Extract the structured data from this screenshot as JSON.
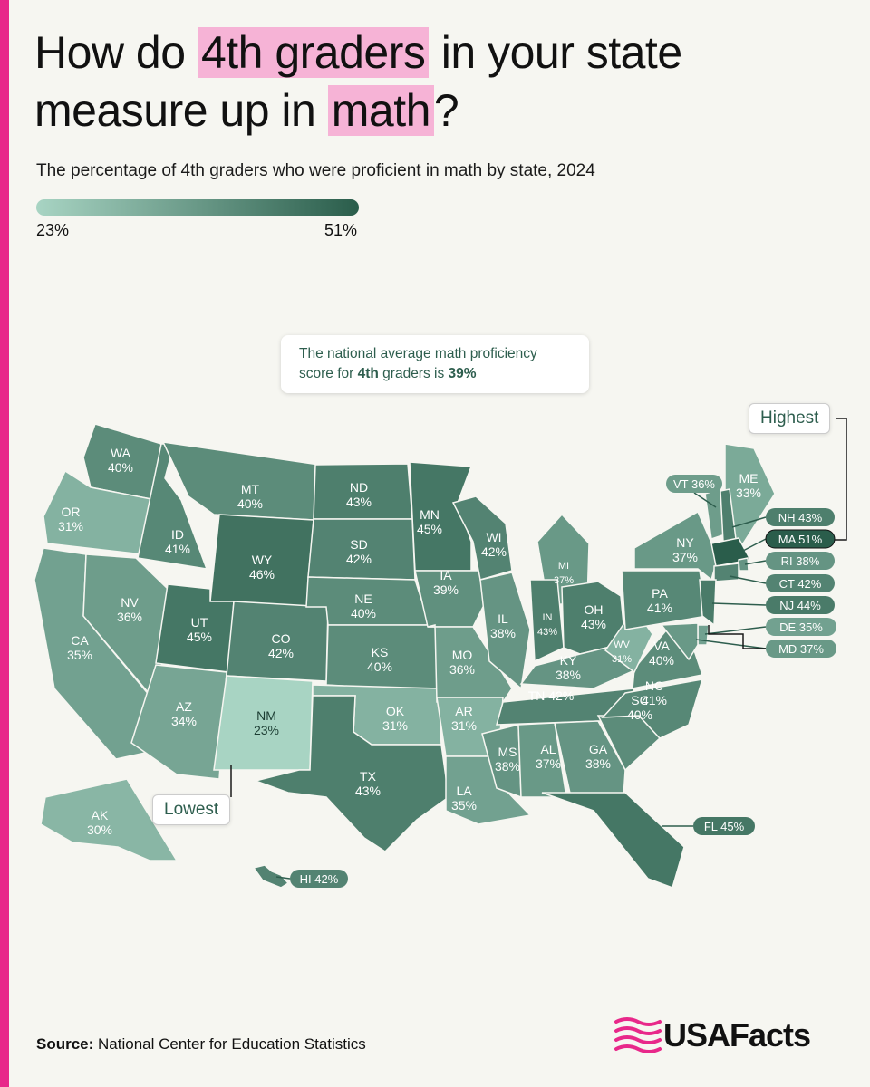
{
  "title": {
    "part1": "How do ",
    "highlight1": "4th graders",
    "part2": " in your state measure up in ",
    "highlight2": "math",
    "part3": "?"
  },
  "subtitle": "The percentage of 4th graders who were proficient in math by state, 2024",
  "legend": {
    "min": "23%",
    "max": "51%",
    "min_color": "#a8d4c3",
    "max_color": "#2a5d4b"
  },
  "note": {
    "text1": "The national average math proficiency score for ",
    "bold1": "4th",
    "text2": " graders is ",
    "bold2": "39%"
  },
  "callouts": {
    "highest": "Highest",
    "lowest": "Lowest"
  },
  "source": {
    "label": "Source:",
    "text": " National Center for Education Statistics"
  },
  "logo": {
    "text": "USAFacts",
    "color": "#e8288a"
  },
  "map_data": [
    {
      "abbr": "WA",
      "value": 40
    },
    {
      "abbr": "OR",
      "value": 31
    },
    {
      "abbr": "CA",
      "value": 35
    },
    {
      "abbr": "ID",
      "value": 41
    },
    {
      "abbr": "NV",
      "value": 36
    },
    {
      "abbr": "MT",
      "value": 40
    },
    {
      "abbr": "WY",
      "value": 46
    },
    {
      "abbr": "UT",
      "value": 45
    },
    {
      "abbr": "AZ",
      "value": 34
    },
    {
      "abbr": "CO",
      "value": 42
    },
    {
      "abbr": "NM",
      "value": 23
    },
    {
      "abbr": "ND",
      "value": 43
    },
    {
      "abbr": "SD",
      "value": 42
    },
    {
      "abbr": "NE",
      "value": 40
    },
    {
      "abbr": "KS",
      "value": 40
    },
    {
      "abbr": "OK",
      "value": 31
    },
    {
      "abbr": "TX",
      "value": 43
    },
    {
      "abbr": "MN",
      "value": 45
    },
    {
      "abbr": "IA",
      "value": 39
    },
    {
      "abbr": "MO",
      "value": 36
    },
    {
      "abbr": "AR",
      "value": 31
    },
    {
      "abbr": "LA",
      "value": 35
    },
    {
      "abbr": "WI",
      "value": 42
    },
    {
      "abbr": "IL",
      "value": 38
    },
    {
      "abbr": "MI",
      "value": 37
    },
    {
      "abbr": "IN",
      "value": 43
    },
    {
      "abbr": "OH",
      "value": 43
    },
    {
      "abbr": "KY",
      "value": 38
    },
    {
      "abbr": "TN",
      "value": 42
    },
    {
      "abbr": "MS",
      "value": 38
    },
    {
      "abbr": "AL",
      "value": 37
    },
    {
      "abbr": "GA",
      "value": 38
    },
    {
      "abbr": "FL",
      "value": 45
    },
    {
      "abbr": "SC",
      "value": 40
    },
    {
      "abbr": "NC",
      "value": 41
    },
    {
      "abbr": "VA",
      "value": 40
    },
    {
      "abbr": "WV",
      "value": 31
    },
    {
      "abbr": "PA",
      "value": 41
    },
    {
      "abbr": "NY",
      "value": 37
    },
    {
      "abbr": "VT",
      "value": 36
    },
    {
      "abbr": "ME",
      "value": 33
    },
    {
      "abbr": "NH",
      "value": 43
    },
    {
      "abbr": "MA",
      "value": 51
    },
    {
      "abbr": "RI",
      "value": 38
    },
    {
      "abbr": "CT",
      "value": 42
    },
    {
      "abbr": "NJ",
      "value": 44
    },
    {
      "abbr": "DE",
      "value": 35
    },
    {
      "abbr": "MD",
      "value": 37
    },
    {
      "abbr": "AK",
      "value": 30
    },
    {
      "abbr": "HI",
      "value": 42
    }
  ]
}
